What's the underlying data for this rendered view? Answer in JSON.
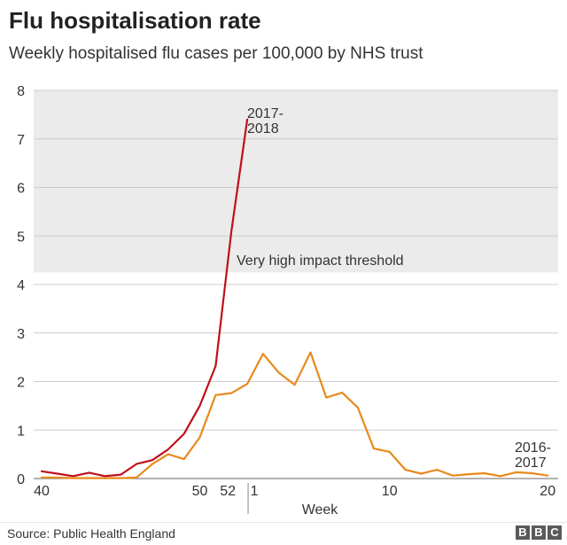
{
  "header": {
    "title": "Flu hospitalisation rate",
    "subtitle": "Weekly hospitalised flu cases per 100,000 by NHS trust"
  },
  "footer": {
    "source": "Source: Public Health England",
    "logo_letters": [
      "B",
      "B",
      "C"
    ]
  },
  "colors": {
    "series_2017": "#c00f1a",
    "series_2016": "#e8891c",
    "threshold_band": "#ebebeb",
    "grid": "#cccccc"
  },
  "chart_data": {
    "type": "line",
    "xlabel": "Week",
    "ylabel": "",
    "ylim": [
      0,
      8
    ],
    "yticks": [
      0,
      1,
      2,
      3,
      4,
      5,
      6,
      7,
      8
    ],
    "x_tick_labels": [
      "40",
      "50",
      "52",
      "1",
      "10",
      "20"
    ],
    "threshold": {
      "from": 4.25,
      "to": 8,
      "label": "Very high impact threshold"
    },
    "series": [
      {
        "name": "2017-2018",
        "label_lines": [
          "2017-",
          "2018"
        ],
        "color": "#c00f1a",
        "points": [
          {
            "week": 40,
            "value": 0.15
          },
          {
            "week": 41,
            "value": 0.1
          },
          {
            "week": 42,
            "value": 0.05
          },
          {
            "week": 43,
            "value": 0.12
          },
          {
            "week": 44,
            "value": 0.05
          },
          {
            "week": 45,
            "value": 0.08
          },
          {
            "week": 46,
            "value": 0.3
          },
          {
            "week": 47,
            "value": 0.38
          },
          {
            "week": 48,
            "value": 0.6
          },
          {
            "week": 49,
            "value": 0.92
          },
          {
            "week": 50,
            "value": 1.5
          },
          {
            "week": 51,
            "value": 2.32
          },
          {
            "week": 52,
            "value": 5.1
          },
          {
            "week": 1,
            "value": 7.4
          }
        ]
      },
      {
        "name": "2016-2017",
        "label_lines": [
          "2016-",
          "2017"
        ],
        "color": "#e8891c",
        "points": [
          {
            "week": 40,
            "value": 0.02
          },
          {
            "week": 41,
            "value": 0.02
          },
          {
            "week": 42,
            "value": 0.01
          },
          {
            "week": 43,
            "value": 0.01
          },
          {
            "week": 44,
            "value": 0.01
          },
          {
            "week": 45,
            "value": 0.01
          },
          {
            "week": 46,
            "value": 0.02
          },
          {
            "week": 47,
            "value": 0.3
          },
          {
            "week": 48,
            "value": 0.5
          },
          {
            "week": 49,
            "value": 0.4
          },
          {
            "week": 50,
            "value": 0.85
          },
          {
            "week": 51,
            "value": 1.72
          },
          {
            "week": 52,
            "value": 1.76
          },
          {
            "week": 1,
            "value": 1.95
          },
          {
            "week": 2,
            "value": 2.57
          },
          {
            "week": 3,
            "value": 2.18
          },
          {
            "week": 4,
            "value": 1.93
          },
          {
            "week": 5,
            "value": 2.6
          },
          {
            "week": 6,
            "value": 1.67
          },
          {
            "week": 7,
            "value": 1.77
          },
          {
            "week": 8,
            "value": 1.46
          },
          {
            "week": 9,
            "value": 0.62
          },
          {
            "week": 10,
            "value": 0.55
          },
          {
            "week": 11,
            "value": 0.18
          },
          {
            "week": 12,
            "value": 0.1
          },
          {
            "week": 13,
            "value": 0.18
          },
          {
            "week": 14,
            "value": 0.06
          },
          {
            "week": 15,
            "value": 0.09
          },
          {
            "week": 16,
            "value": 0.11
          },
          {
            "week": 17,
            "value": 0.05
          },
          {
            "week": 18,
            "value": 0.13
          },
          {
            "week": 19,
            "value": 0.11
          },
          {
            "week": 20,
            "value": 0.06
          }
        ]
      }
    ]
  }
}
